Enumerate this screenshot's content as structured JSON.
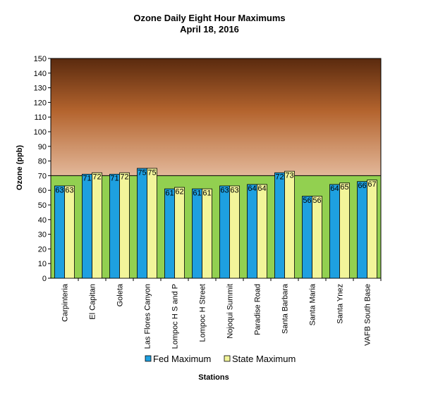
{
  "chart_data": {
    "type": "bar",
    "title": "Ozone Daily Eight Hour Maximums",
    "subtitle": "April 18, 2016",
    "xlabel": "Stations",
    "ylabel": "Ozone (ppb)",
    "ylim": [
      0,
      150
    ],
    "yticks": [
      0,
      10,
      20,
      30,
      40,
      50,
      60,
      70,
      80,
      90,
      100,
      110,
      120,
      130,
      140,
      150
    ],
    "threshold": 70,
    "categories": [
      "Carpinteria",
      "El Capitan",
      "Goleta",
      "Las Flores Canyon",
      "Lompoc H S and P",
      "Lompoc H Street",
      "Nojoqui Summit",
      "Paradise Road",
      "Santa Barbara",
      "Santa Maria",
      "Santa Ynez",
      "VAFB South Base"
    ],
    "series": [
      {
        "name": "Fed Maximum",
        "color": "#1ea0e0",
        "values": [
          63,
          71,
          71,
          75,
          61,
          61,
          63,
          64,
          72,
          56,
          64,
          66
        ]
      },
      {
        "name": "State Maximum",
        "color": "#f2f59a",
        "values": [
          63,
          72,
          72,
          75,
          62,
          61,
          63,
          64,
          73,
          56,
          65,
          67
        ]
      }
    ],
    "background": {
      "below_threshold": "#92d050",
      "above_gradient_top": "#5a2a0e",
      "above_gradient_mid": "#b4642e",
      "above_gradient_bottom": "#e3b89a"
    },
    "legend_position": "bottom",
    "grid": false
  }
}
